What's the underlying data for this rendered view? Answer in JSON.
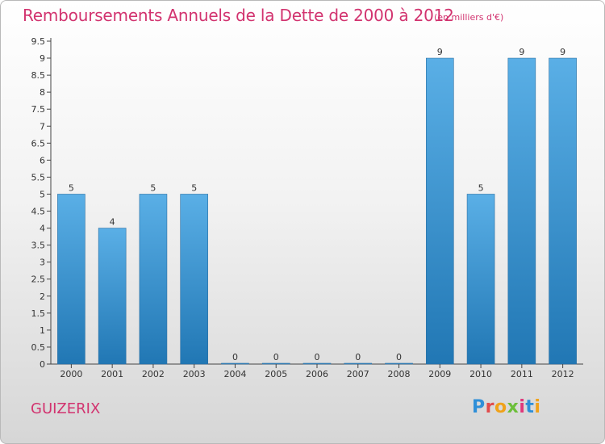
{
  "header": {
    "title": "Remboursements Annuels de la Dette de 2000 à 2012",
    "unit": "(en milliers d'€)"
  },
  "footer": {
    "commune": "GUIZERIX",
    "logo": "Proxiti"
  },
  "colors": {
    "title": "#d2336f",
    "bar_top": "#5aafe6",
    "bar_bottom": "#2177b4",
    "logo_letters": [
      "#2f8fd8",
      "#e14b4b",
      "#f0a21a",
      "#6cbf3a",
      "#e0397b",
      "#2f8fd8",
      "#f0a21a"
    ]
  },
  "chart_data": {
    "type": "bar",
    "title": "Remboursements Annuels de la Dette de 2000 à 2012",
    "xlabel": "",
    "ylabel": "",
    "categories": [
      "2000",
      "2001",
      "2002",
      "2003",
      "2004",
      "2005",
      "2006",
      "2007",
      "2008",
      "2009",
      "2010",
      "2011",
      "2012"
    ],
    "values": [
      5,
      4,
      5,
      5,
      0,
      0,
      0,
      0,
      0,
      9,
      5,
      9,
      9
    ],
    "data_labels": [
      "5",
      "4",
      "5",
      "5",
      "0",
      "0",
      "0",
      "0",
      "0",
      "9",
      "5",
      "9",
      "9"
    ],
    "ylim": [
      0,
      9.5
    ],
    "yticks": [
      "0",
      "0.5",
      "1",
      "1.5",
      "2",
      "2.5",
      "3",
      "3.5",
      "4",
      "4.5",
      "5",
      "5.5",
      "6",
      "6.5",
      "7",
      "7.5",
      "8",
      "8.5",
      "9",
      "9.5"
    ],
    "grid": false,
    "legend": "none"
  }
}
